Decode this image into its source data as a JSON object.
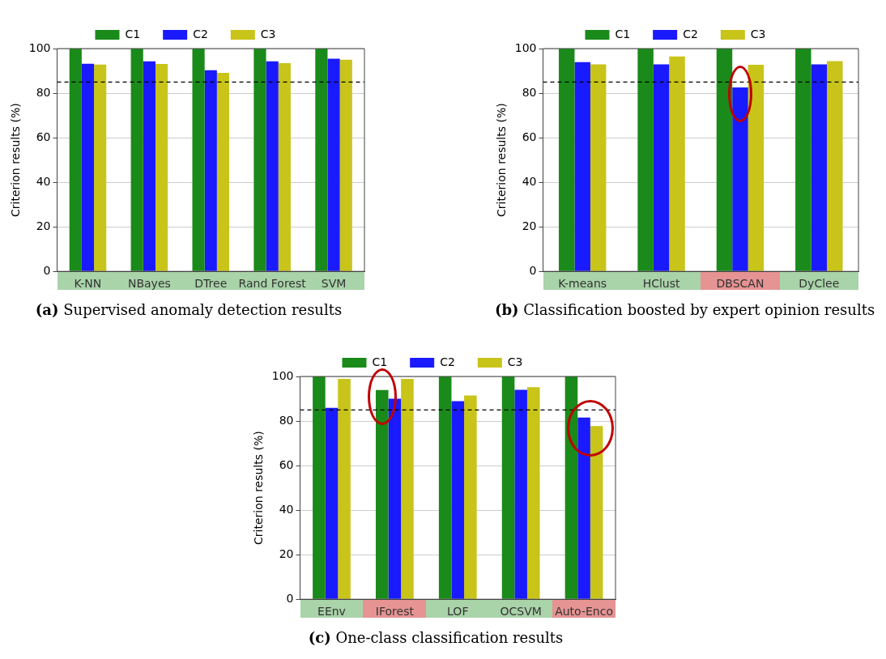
{
  "chart_data": [
    {
      "type": "bar",
      "title": "(a) Supervised anomaly detection results",
      "ylabel": "Criterion results (%)",
      "categories": [
        "K-NN",
        "NBayes",
        "DTree",
        "Rand Forest",
        "SVM"
      ],
      "series": [
        {
          "name": "C1",
          "color": "#1a8a1a",
          "values": [
            100,
            100,
            100,
            100,
            100
          ]
        },
        {
          "name": "C2",
          "color": "#1a1aff",
          "values": [
            93.2,
            94.3,
            90.3,
            94.3,
            95.5
          ]
        },
        {
          "name": "C3",
          "color": "#c8c41a",
          "values": [
            92.8,
            93.1,
            89.1,
            93.5,
            95.0
          ]
        }
      ],
      "ylim": [
        0,
        100
      ],
      "yticks": [
        0,
        20,
        40,
        60,
        80,
        100
      ],
      "grid": "y",
      "legend": "top",
      "ref_lines": [
        {
          "axis": "y",
          "value": 85,
          "color": "#000000",
          "line_style": "dashed"
        }
      ]
    },
    {
      "type": "bar",
      "title": "(b) Classification boosted by expert opinion results",
      "ylabel": "Criterion results (%)",
      "categories": [
        "K-means",
        "HClust",
        "DBSCAN",
        "DyClee"
      ],
      "series": [
        {
          "name": "C1",
          "color": "#1a8a1a",
          "values": [
            100,
            100,
            100,
            100
          ]
        },
        {
          "name": "C2",
          "color": "#1a1aff",
          "values": [
            93.9,
            92.9,
            82.6,
            92.9
          ]
        },
        {
          "name": "C3",
          "color": "#c8c41a",
          "values": [
            92.9,
            96.5,
            92.7,
            94.4
          ]
        }
      ],
      "ylim": [
        0,
        100
      ],
      "yticks": [
        0,
        20,
        40,
        60,
        80,
        100
      ],
      "grid": "y",
      "legend": "top",
      "ref_lines": [
        {
          "axis": "y",
          "value": 85,
          "color": "#000000",
          "line_style": "dashed"
        }
      ]
    },
    {
      "type": "bar",
      "title": "(c) One-class classification results",
      "ylabel": "Criterion results (%)",
      "categories": [
        "EEnv",
        "IForest",
        "LOF",
        "OCSVM",
        "Auto-Enco"
      ],
      "series": [
        {
          "name": "C1",
          "color": "#1a8a1a",
          "values": [
            100,
            93.9,
            100,
            100,
            100
          ]
        },
        {
          "name": "C2",
          "color": "#1a1aff",
          "values": [
            85.9,
            90.0,
            88.9,
            94.0,
            81.6
          ]
        },
        {
          "name": "C3",
          "color": "#c8c41a",
          "values": [
            98.9,
            98.9,
            91.5,
            95.2,
            77.7
          ]
        }
      ],
      "ylim": [
        0,
        100
      ],
      "yticks": [
        0,
        20,
        40,
        60,
        80,
        100
      ],
      "grid": "y",
      "legend": "top",
      "ref_lines": [
        {
          "axis": "y",
          "value": 85,
          "color": "#000000",
          "line_style": "dashed"
        }
      ]
    }
  ]
}
